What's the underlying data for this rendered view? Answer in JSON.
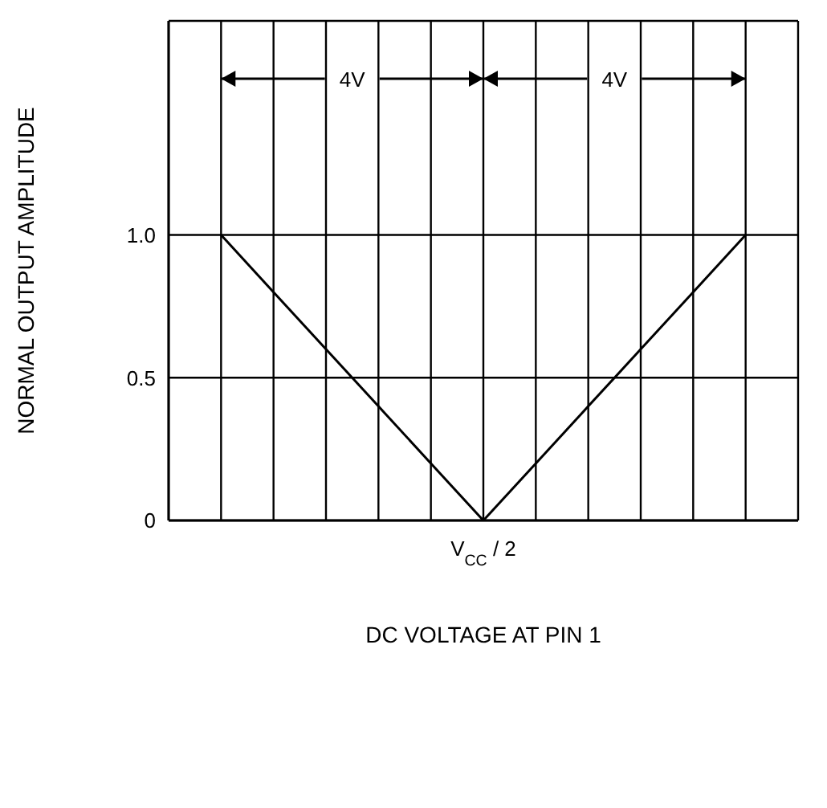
{
  "chart_data": {
    "type": "line",
    "xlabel": "DC VOLTAGE AT PIN 1",
    "ylabel": "NORMAL OUTPUT AMPLITUDE",
    "categories": [
      null,
      null,
      null,
      null,
      null,
      null,
      "V$_{CC}$ / 2",
      null,
      null,
      null,
      null,
      null,
      null
    ],
    "series": [
      {
        "color": "#000000",
        "values": [
          null,
          1,
          0.8,
          0.6,
          0.4,
          0.2,
          0,
          0.2,
          0.4,
          0.6,
          0.8,
          1,
          null
        ]
      }
    ],
    "ylim": [
      0,
      1.75
    ],
    "yticks": [
      0,
      0.5,
      {
        "value": 1,
        "label": "1.0"
      }
    ],
    "grid": true,
    "marker": "none",
    "line_style": "solid",
    "annotations": [
      "4V",
      "4V"
    ]
  }
}
